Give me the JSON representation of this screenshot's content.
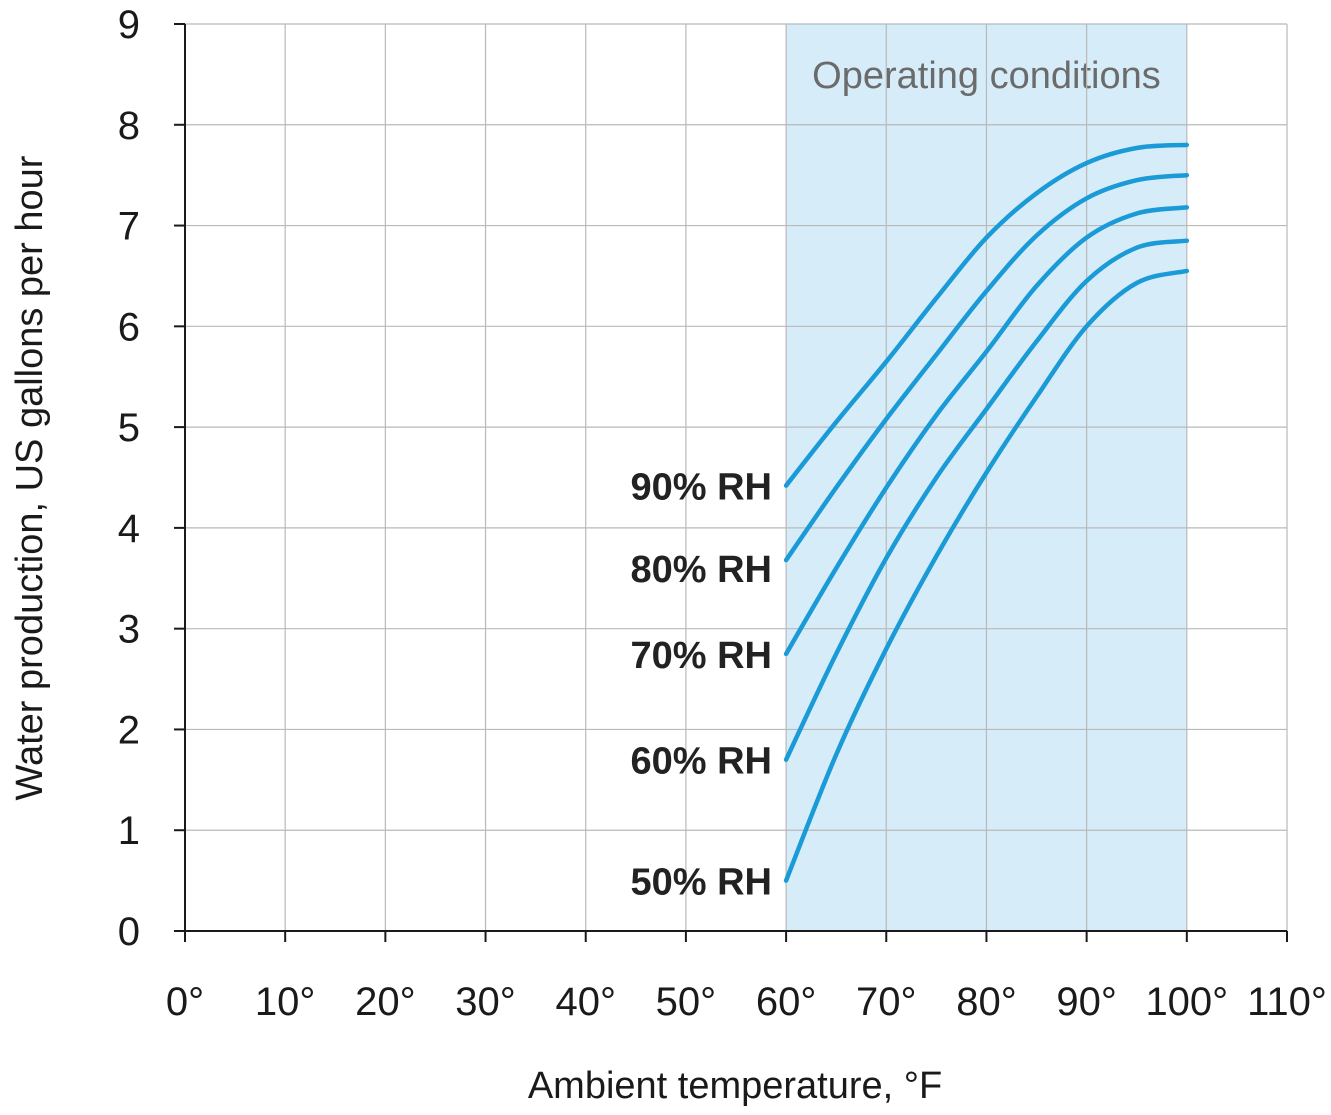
{
  "chart_data": {
    "type": "line",
    "title": "",
    "xlabel": "Ambient temperature, °F",
    "ylabel": "Water production, US gallons per hour",
    "xlim": [
      0,
      110
    ],
    "ylim": [
      0,
      9
    ],
    "x_ticks": [
      0,
      10,
      20,
      30,
      40,
      50,
      60,
      70,
      80,
      90,
      100,
      110
    ],
    "x_tick_labels": [
      "0°",
      "10°",
      "20°",
      "30°",
      "40°",
      "50°",
      "60°",
      "70°",
      "80°",
      "90°",
      "100°",
      "110°"
    ],
    "y_ticks": [
      0,
      1,
      2,
      3,
      4,
      5,
      6,
      7,
      8,
      9
    ],
    "y_tick_labels": [
      "0",
      "1",
      "2",
      "3",
      "4",
      "5",
      "6",
      "7",
      "8",
      "9"
    ],
    "grid": true,
    "legend": "none",
    "shaded_region": {
      "x_range": [
        60,
        100
      ],
      "label": "Operating conditions",
      "color": "#d6ecf9",
      "label_color": "#6b6b6b"
    },
    "line_color": "#1a9ad6",
    "series": [
      {
        "name": "90% RH",
        "x": [
          60,
          65,
          70,
          75,
          80,
          85,
          90,
          95,
          100
        ],
        "values": [
          4.42,
          5.05,
          5.65,
          6.28,
          6.88,
          7.32,
          7.62,
          7.77,
          7.8
        ]
      },
      {
        "name": "80% RH",
        "x": [
          60,
          65,
          70,
          75,
          80,
          85,
          90,
          95,
          100
        ],
        "values": [
          3.68,
          4.4,
          5.08,
          5.72,
          6.35,
          6.9,
          7.27,
          7.45,
          7.5
        ]
      },
      {
        "name": "70% RH",
        "x": [
          60,
          65,
          70,
          75,
          80,
          85,
          90,
          95,
          100
        ],
        "values": [
          2.75,
          3.6,
          4.4,
          5.12,
          5.75,
          6.4,
          6.88,
          7.12,
          7.18
        ]
      },
      {
        "name": "60% RH",
        "x": [
          60,
          65,
          70,
          75,
          80,
          85,
          90,
          95,
          100
        ],
        "values": [
          1.7,
          2.75,
          3.7,
          4.5,
          5.18,
          5.85,
          6.45,
          6.78,
          6.85
        ]
      },
      {
        "name": "50% RH",
        "x": [
          60,
          65,
          70,
          75,
          80,
          85,
          90,
          95,
          100
        ],
        "values": [
          0.5,
          1.75,
          2.8,
          3.72,
          4.55,
          5.3,
          6.0,
          6.43,
          6.55
        ]
      }
    ]
  }
}
